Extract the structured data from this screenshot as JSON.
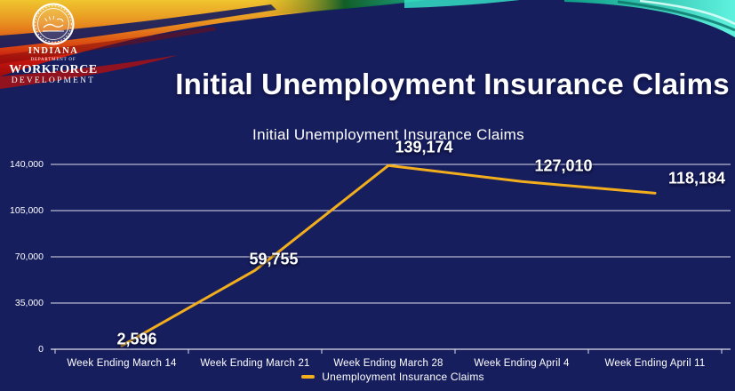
{
  "slide": {
    "logo": {
      "line1": "INDIANA",
      "line2": "DEPARTMENT OF",
      "line3": "WORKFORCE",
      "line4": "DEVELOPMENT"
    },
    "title": "Initial Unemployment Insurance Claims"
  },
  "colors": {
    "background": "#171E5E",
    "line": "#F2AE1C",
    "grid": "#E9EAF4",
    "text": "#FFFFFF"
  },
  "chart_data": {
    "type": "line",
    "title": "Initial Unemployment Insurance Claims",
    "categories": [
      "Week Ending March 14",
      "Week Ending March 21",
      "Week Ending March 28",
      "Week Ending April 4",
      "Week Ending April 11"
    ],
    "series": [
      {
        "name": "Unemployment Insurance Claims",
        "values": [
          2596,
          59755,
          139174,
          127010,
          118184
        ]
      }
    ],
    "value_labels": [
      "2,596",
      "59,755",
      "139,174",
      "127,010",
      "118,184"
    ],
    "y_tick_labels": [
      "0",
      "35,000",
      "70,000",
      "105,000",
      "140,000"
    ],
    "y_tick_values": [
      0,
      35000,
      70000,
      105000,
      140000
    ],
    "ylim": [
      0,
      140000
    ],
    "grid": true,
    "legend": {
      "label": "Unemployment Insurance Claims",
      "position": "bottom"
    }
  }
}
